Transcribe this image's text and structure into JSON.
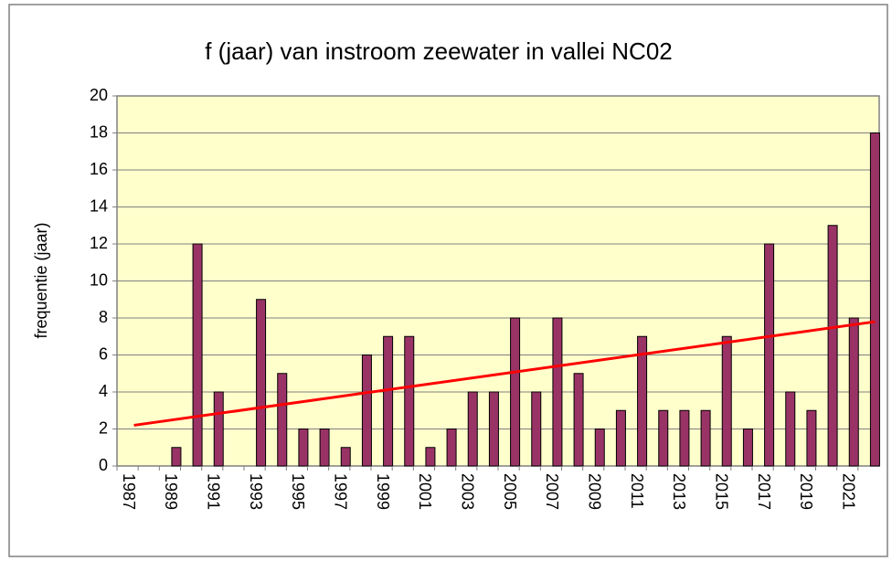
{
  "chart_data": {
    "type": "bar",
    "title": "f (jaar) van instroom zeewater in vallei NC02",
    "y_label": "frequentie (jaar)",
    "categories": [
      "1987",
      null,
      "1989",
      null,
      "1991",
      null,
      "1993",
      null,
      "1995",
      null,
      "1997",
      null,
      "1999",
      null,
      "2001",
      null,
      "2003",
      null,
      "2005",
      null,
      "2007",
      null,
      "2009",
      null,
      "2011",
      null,
      "2013",
      null,
      "2015",
      null,
      "2017",
      null,
      "2019",
      null,
      "2021",
      null
    ],
    "values": [
      0,
      0,
      1,
      12,
      4,
      0,
      9,
      5,
      2,
      2,
      1,
      6,
      7,
      7,
      1,
      2,
      4,
      4,
      8,
      4,
      8,
      5,
      2,
      3,
      7,
      3,
      3,
      3,
      7,
      2,
      12,
      4,
      3,
      13,
      8,
      18
    ],
    "color": "#993366",
    "trend": {
      "color": "#ff0000",
      "values": [
        2.2,
        7.8
      ]
    },
    "ylim": [
      0,
      20
    ],
    "yticks": [
      0,
      2,
      4,
      6,
      8,
      10,
      12,
      14,
      16,
      18,
      20
    ],
    "grid": true,
    "plot_background": "#ffffcc"
  }
}
